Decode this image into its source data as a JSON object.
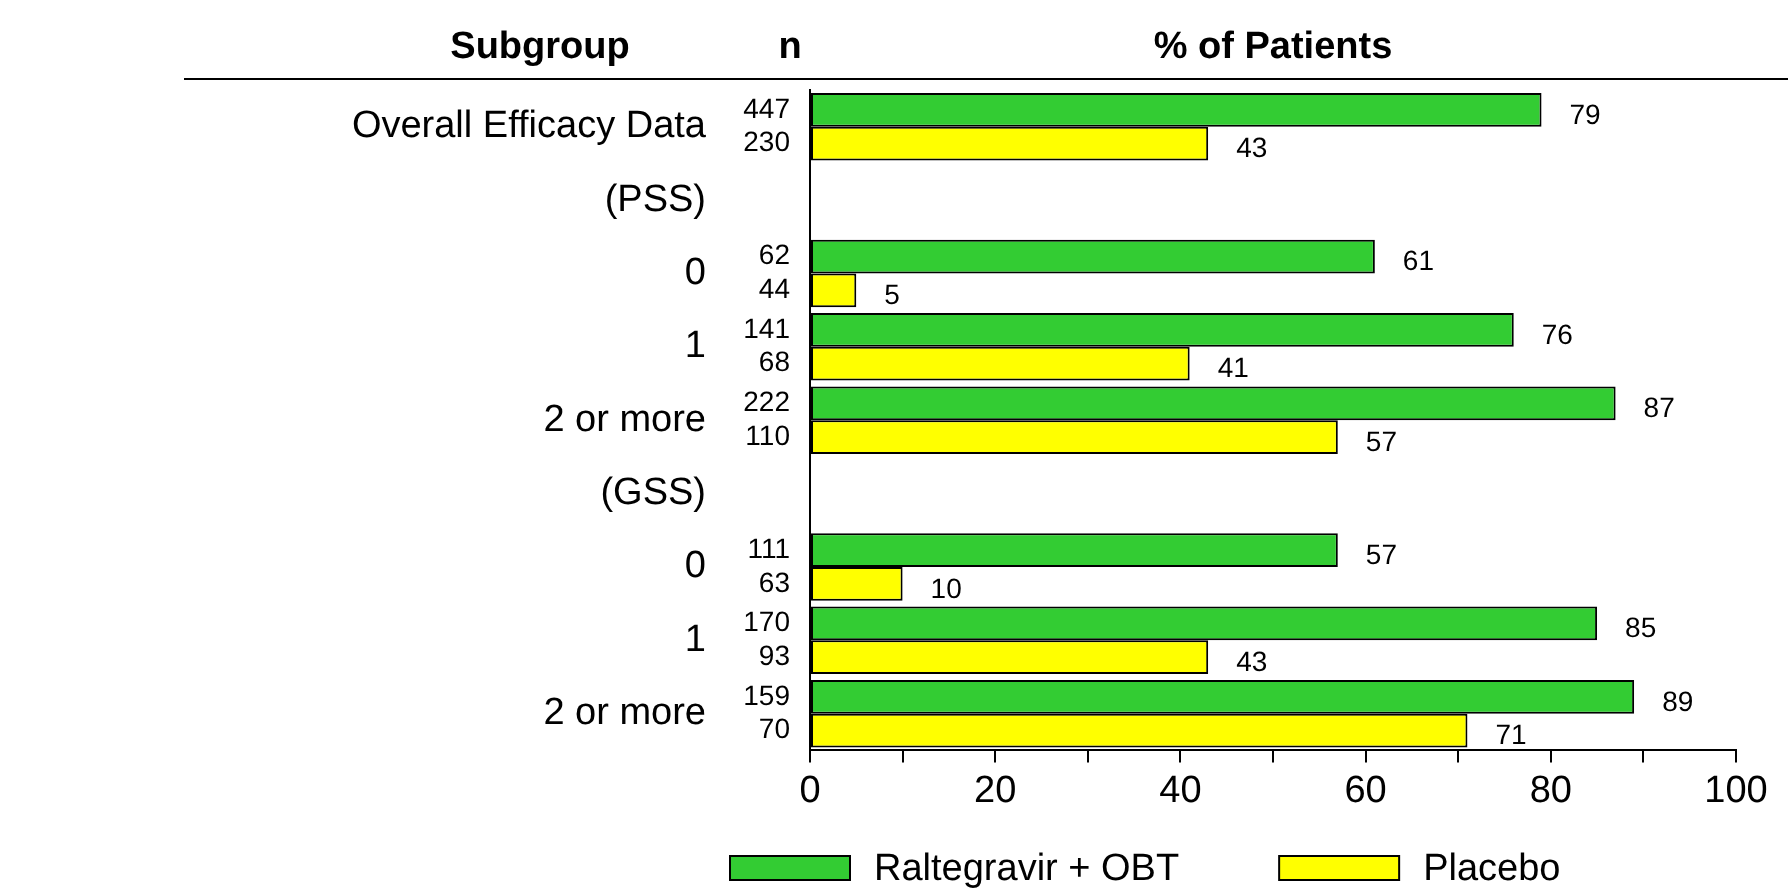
{
  "chart_data": {
    "type": "bar",
    "orientation": "horizontal",
    "ylabel": "Subgroup",
    "xlabel": "% of Patients",
    "categories": [
      "Overall Efficacy Data",
      "(PSS)",
      "0",
      "1",
      "2 or more",
      "(GSS)",
      "0",
      "1",
      "2 or more"
    ],
    "series": [
      {
        "name": "Raltegravir + OBT",
        "color": "#33cc33",
        "values": [
          79,
          null,
          61,
          76,
          87,
          null,
          57,
          85,
          89
        ]
      },
      {
        "name": "Placebo",
        "color": "#ffff00",
        "values": [
          43,
          null,
          5,
          41,
          57,
          null,
          10,
          43,
          71
        ]
      }
    ],
    "xlim": [
      0,
      100
    ],
    "xticks": [
      0,
      {
        "value": 10,
        "label": null
      },
      20,
      {
        "value": 30,
        "label": null
      },
      40,
      {
        "value": 50,
        "label": null
      },
      60,
      {
        "value": 70,
        "label": null
      },
      80,
      {
        "value": 90,
        "label": null
      },
      100
    ],
    "data_labels": true,
    "grid": false,
    "legend": "bottom",
    "annotations": [
      "n",
      "447",
      "230",
      "62",
      "44",
      "141",
      "68",
      "222",
      "110",
      "111",
      "63",
      "170",
      "93",
      "159",
      "70"
    ]
  }
}
